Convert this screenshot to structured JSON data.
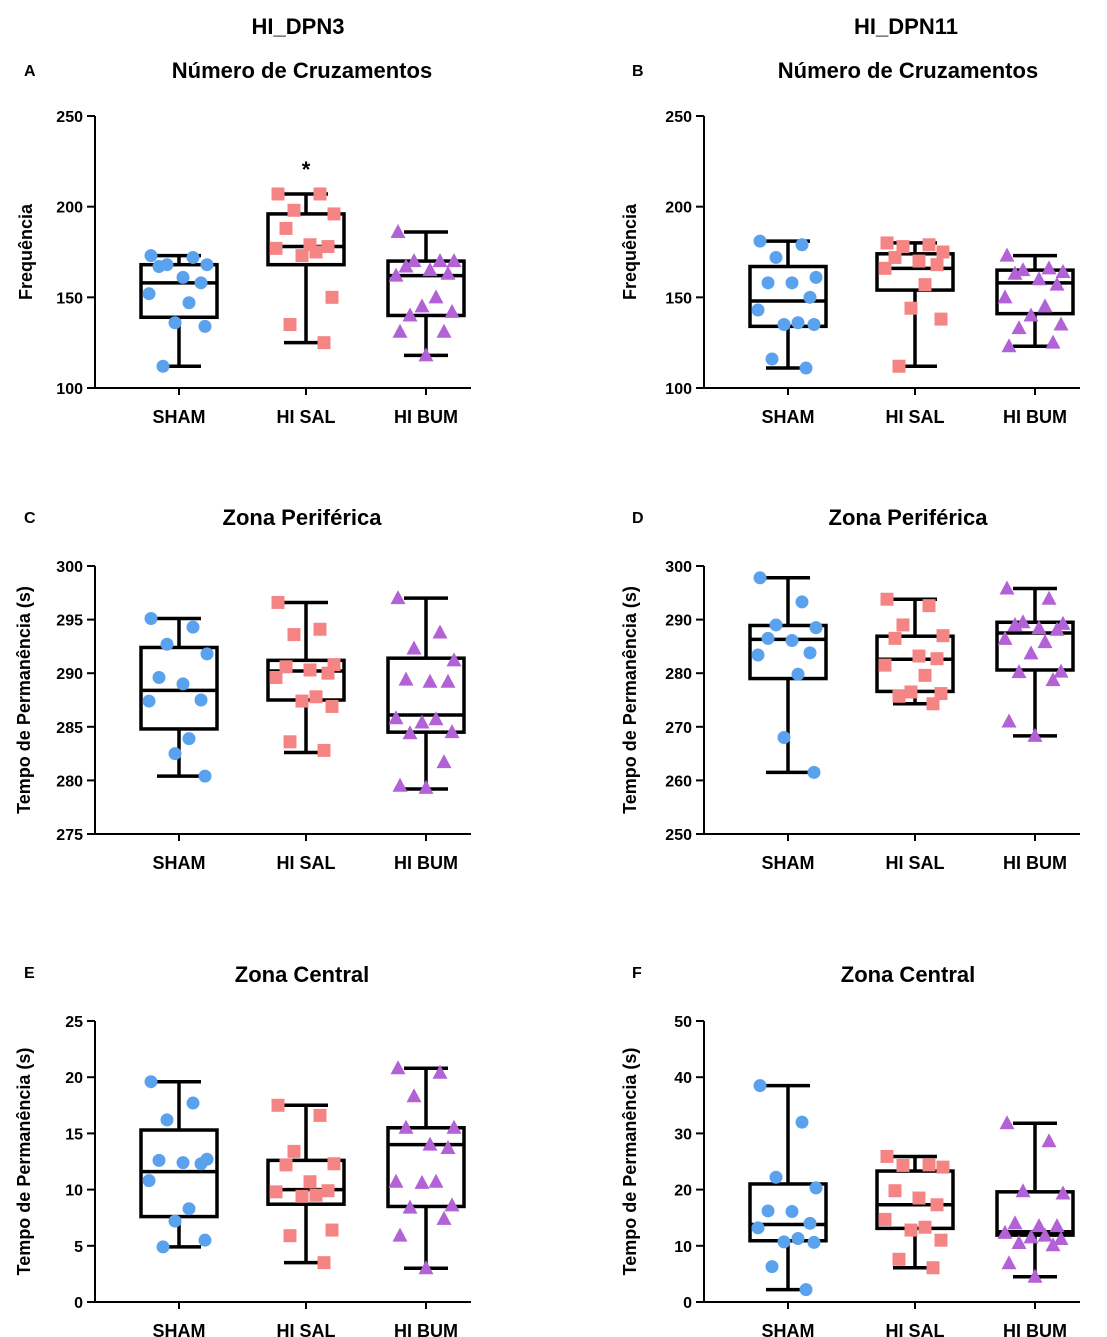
{
  "column_titles": [
    "HI_DPN3",
    "HI_DPN11"
  ],
  "colors": {
    "SHAM": "#5aa2ee",
    "HI SAL": "#f58585",
    "HI BUM": "#b262d6"
  },
  "marker_shapes": {
    "SHAM": "circle",
    "HI SAL": "square",
    "HI BUM": "triangle"
  },
  "chart_data": [
    {
      "panel": "A",
      "type": "box",
      "title": "Número de Cruzamentos",
      "ylabel": "Frequência",
      "ylim": [
        100,
        250
      ],
      "yticks": [
        100,
        150,
        200,
        250
      ],
      "categories": [
        "SHAM",
        "HI SAL",
        "HI BUM"
      ],
      "annotations": [
        {
          "category": "HI SAL",
          "text": "*",
          "y": 224
        }
      ],
      "groups": [
        {
          "name": "SHAM",
          "min": 112,
          "q1": 139,
          "median": 158,
          "q3": 168,
          "max": 173,
          "points": [
            173,
            172,
            168,
            168,
            167,
            161,
            158,
            152,
            147,
            136,
            134,
            112
          ]
        },
        {
          "name": "HI SAL",
          "min": 125,
          "q1": 168,
          "median": 178,
          "q3": 196,
          "max": 207,
          "points": [
            207,
            207,
            198,
            196,
            188,
            179,
            178,
            177,
            175,
            173,
            150,
            135,
            125
          ]
        },
        {
          "name": "HI BUM",
          "min": 118,
          "q1": 140,
          "median": 162,
          "q3": 170,
          "max": 186,
          "points": [
            186,
            170,
            170,
            170,
            167,
            165,
            163,
            162,
            150,
            145,
            142,
            140,
            131,
            131,
            118
          ]
        }
      ]
    },
    {
      "panel": "B",
      "type": "box",
      "title": "Número de Cruzamentos",
      "ylabel": "Frequência",
      "ylim": [
        100,
        250
      ],
      "yticks": [
        100,
        150,
        200,
        250
      ],
      "categories": [
        "SHAM",
        "HI SAL",
        "HI BUM"
      ],
      "annotations": [],
      "groups": [
        {
          "name": "SHAM",
          "min": 111,
          "q1": 134,
          "median": 148,
          "q3": 167,
          "max": 181,
          "points": [
            181,
            179,
            172,
            161,
            158,
            158,
            150,
            143,
            136,
            135,
            135,
            116,
            111
          ]
        },
        {
          "name": "HI SAL",
          "min": 112,
          "q1": 154,
          "median": 166,
          "q3": 174,
          "max": 180,
          "points": [
            180,
            179,
            178,
            175,
            172,
            170,
            168,
            166,
            157,
            144,
            138,
            112
          ]
        },
        {
          "name": "HI BUM",
          "min": 123,
          "q1": 141,
          "median": 158,
          "q3": 165,
          "max": 173,
          "points": [
            173,
            166,
            165,
            164,
            163,
            160,
            157,
            150,
            145,
            140,
            135,
            133,
            125,
            123
          ]
        }
      ]
    },
    {
      "panel": "C",
      "type": "box",
      "title": "Zona Periférica",
      "ylabel": "Tempo de Permanência (s)",
      "ylim": [
        275,
        300
      ],
      "yticks": [
        275,
        280,
        285,
        290,
        295,
        300
      ],
      "categories": [
        "SHAM",
        "HI SAL",
        "HI BUM"
      ],
      "annotations": [],
      "groups": [
        {
          "name": "SHAM",
          "min": 280.4,
          "q1": 284.8,
          "median": 288.4,
          "q3": 292.4,
          "max": 295.1,
          "points": [
            295.1,
            294.3,
            292.7,
            291.8,
            289.6,
            289.0,
            287.5,
            287.4,
            283.9,
            282.5,
            280.4
          ]
        },
        {
          "name": "HI SAL",
          "min": 282.6,
          "q1": 287.5,
          "median": 290.2,
          "q3": 291.2,
          "max": 296.6,
          "points": [
            296.6,
            294.1,
            293.6,
            290.8,
            290.6,
            290.3,
            290.0,
            289.6,
            287.8,
            287.4,
            286.9,
            283.6,
            282.8
          ]
        },
        {
          "name": "HI BUM",
          "min": 279.2,
          "q1": 284.5,
          "median": 286.1,
          "q3": 291.4,
          "max": 297.0,
          "points": [
            297.0,
            293.8,
            292.3,
            291.2,
            289.4,
            289.2,
            289.2,
            285.8,
            285.7,
            285.4,
            284.5,
            284.4,
            281.7,
            279.5,
            279.3
          ]
        }
      ]
    },
    {
      "panel": "D",
      "type": "box",
      "title": "Zona Periférica",
      "ylabel": "Tempo de Permanência (s)",
      "ylim": [
        250,
        300
      ],
      "yticks": [
        250,
        260,
        270,
        280,
        290,
        300
      ],
      "categories": [
        "SHAM",
        "HI SAL",
        "HI BUM"
      ],
      "annotations": [],
      "groups": [
        {
          "name": "SHAM",
          "min": 261.5,
          "q1": 279.0,
          "median": 286.3,
          "q3": 288.9,
          "max": 297.8,
          "points": [
            297.8,
            293.3,
            289.0,
            288.5,
            286.5,
            286.1,
            283.8,
            283.4,
            279.8,
            268.0,
            261.5
          ]
        },
        {
          "name": "HI SAL",
          "min": 274.3,
          "q1": 276.6,
          "median": 282.6,
          "q3": 286.9,
          "max": 293.8,
          "points": [
            293.8,
            292.6,
            289.0,
            287.0,
            286.5,
            283.2,
            282.7,
            281.5,
            279.6,
            276.5,
            276.2,
            275.7,
            274.3
          ]
        },
        {
          "name": "HI BUM",
          "min": 268.3,
          "q1": 280.6,
          "median": 287.5,
          "q3": 289.5,
          "max": 295.8,
          "points": [
            295.8,
            293.9,
            289.5,
            289.2,
            289.0,
            288.4,
            288.1,
            286.4,
            285.8,
            283.7,
            280.3,
            280.2,
            278.7,
            271.0,
            268.3
          ]
        }
      ]
    },
    {
      "panel": "E",
      "type": "box",
      "title": "Zona Central",
      "ylabel": "Tempo de Permanência (s)",
      "ylim": [
        0,
        25
      ],
      "yticks": [
        0,
        5,
        10,
        15,
        20,
        25
      ],
      "categories": [
        "SHAM",
        "HI SAL",
        "HI BUM"
      ],
      "annotations": [],
      "groups": [
        {
          "name": "SHAM",
          "min": 4.9,
          "q1": 7.6,
          "median": 11.6,
          "q3": 15.3,
          "max": 19.6,
          "points": [
            19.6,
            17.7,
            16.2,
            12.7,
            12.6,
            12.4,
            12.3,
            10.8,
            8.3,
            7.2,
            5.5,
            4.9
          ]
        },
        {
          "name": "HI SAL",
          "min": 3.5,
          "q1": 8.7,
          "median": 10.0,
          "q3": 12.6,
          "max": 17.5,
          "points": [
            17.5,
            16.6,
            13.4,
            12.3,
            12.2,
            10.7,
            9.9,
            9.8,
            9.5,
            9.4,
            6.4,
            5.9,
            3.5
          ]
        },
        {
          "name": "HI BUM",
          "min": 3.0,
          "q1": 8.5,
          "median": 14.0,
          "q3": 15.5,
          "max": 20.8,
          "points": [
            20.8,
            20.4,
            18.3,
            15.5,
            15.5,
            14.0,
            13.7,
            10.7,
            10.7,
            10.6,
            8.6,
            8.4,
            7.4,
            5.9,
            3.0
          ]
        }
      ]
    },
    {
      "panel": "F",
      "type": "box",
      "title": "Zona Central",
      "ylabel": "Tempo de Permanência (s)",
      "ylim": [
        0,
        50
      ],
      "yticks": [
        0,
        10,
        20,
        30,
        40,
        50
      ],
      "categories": [
        "SHAM",
        "HI SAL",
        "HI BUM"
      ],
      "annotations": [],
      "groups": [
        {
          "name": "SHAM",
          "min": 2.2,
          "q1": 10.9,
          "median": 13.8,
          "q3": 21.0,
          "max": 38.5,
          "points": [
            38.5,
            32.0,
            22.2,
            20.3,
            16.2,
            16.1,
            14.0,
            13.2,
            11.3,
            10.7,
            10.6,
            6.3,
            2.2
          ]
        },
        {
          "name": "HI SAL",
          "min": 6.1,
          "q1": 13.1,
          "median": 17.3,
          "q3": 23.3,
          "max": 25.9,
          "points": [
            25.9,
            24.4,
            24.3,
            24.0,
            19.8,
            18.5,
            17.3,
            14.7,
            13.3,
            12.8,
            11.0,
            7.6,
            6.1
          ]
        },
        {
          "name": "HI BUM",
          "min": 4.5,
          "q1": 11.9,
          "median": 12.5,
          "q3": 19.6,
          "max": 31.8,
          "points": [
            31.8,
            28.6,
            19.7,
            19.3,
            14.0,
            13.5,
            13.5,
            12.3,
            11.8,
            11.5,
            11.2,
            10.5,
            10.1,
            6.9,
            4.5
          ]
        }
      ]
    }
  ]
}
